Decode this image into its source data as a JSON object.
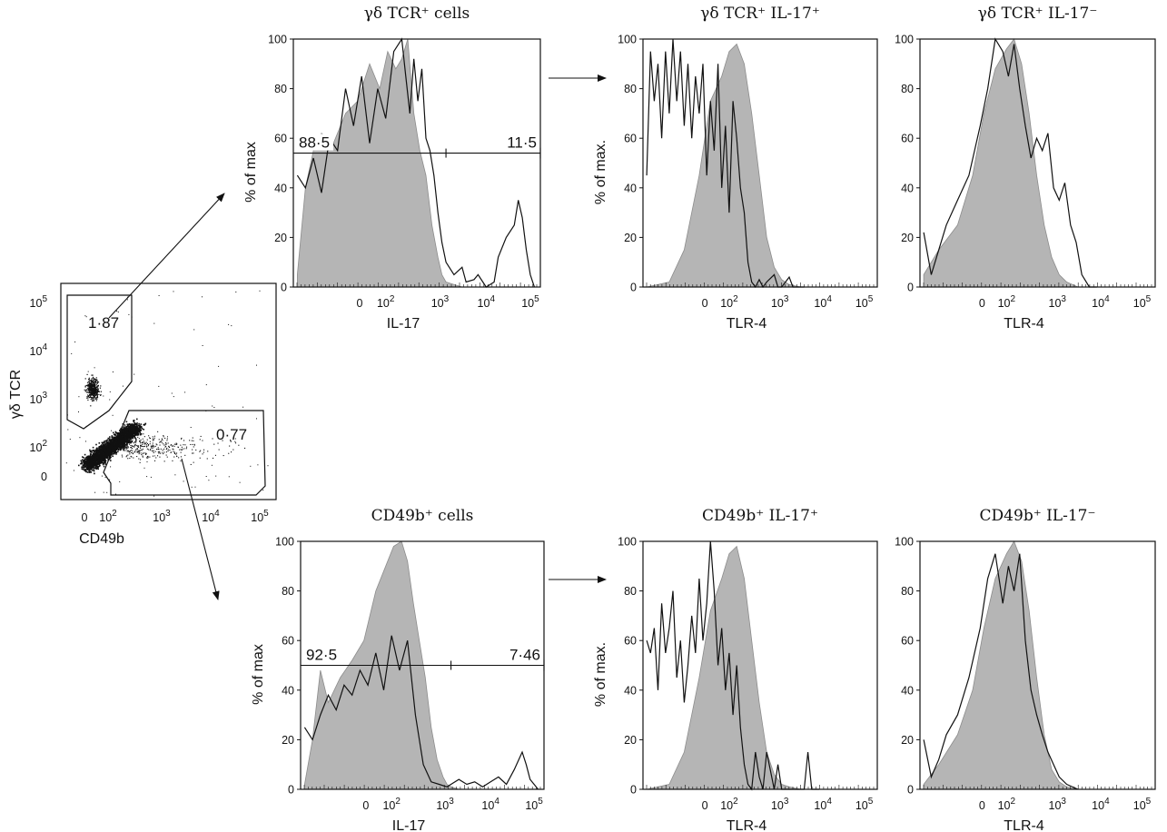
{
  "figure": {
    "arrows": 4
  },
  "chart_data": [
    {
      "id": "dotplot",
      "type": "scatter",
      "xlabel": "CD49b",
      "ylabel": "γδ TCR",
      "x_ticks": [
        "0",
        "10^2",
        "10^3",
        "10^4",
        "10^5"
      ],
      "y_ticks": [
        "0",
        "10^2",
        "10^3",
        "10^4",
        "10^5"
      ],
      "gates": [
        {
          "label": "1·87",
          "population": "γδ TCR+"
        },
        {
          "label": "0·77",
          "population": "CD49b+"
        }
      ]
    },
    {
      "id": "gd-il17",
      "type": "area",
      "title": "γδ TCR⁺ cells",
      "xlabel": "IL-17",
      "ylabel": "% of max",
      "ylim": [
        0,
        100
      ],
      "y_ticks": [
        "0",
        "20",
        "40",
        "60",
        "80",
        "100"
      ],
      "x_ticks": [
        "0",
        "10^2",
        "10^3",
        "10^4",
        "10^5"
      ],
      "gate_labels": [
        "88·5",
        "11·5"
      ],
      "gate_level": 54,
      "series": [
        {
          "style": "filled-grey",
          "x": [
            -0.6,
            -0.4,
            -0.2,
            0.0,
            0.3,
            0.6,
            0.9,
            1.2,
            1.45,
            1.65,
            1.85,
            2.0,
            2.15,
            2.3,
            2.45,
            2.6,
            2.75,
            2.9,
            3.0,
            3.1,
            3.3,
            3.5
          ],
          "y": [
            5,
            40,
            55,
            62,
            58,
            70,
            75,
            90,
            80,
            95,
            88,
            92,
            100,
            70,
            55,
            45,
            25,
            12,
            5,
            2,
            1,
            0
          ]
        },
        {
          "style": "line-black",
          "x": [
            -0.6,
            -0.4,
            -0.2,
            0.0,
            0.2,
            0.4,
            0.6,
            0.8,
            1.0,
            1.2,
            1.4,
            1.6,
            1.8,
            2.0,
            2.1,
            2.2,
            2.3,
            2.4,
            2.5,
            2.6,
            2.7,
            2.8,
            2.9,
            3.0,
            3.1,
            3.3,
            3.5,
            3.6,
            3.8,
            3.9,
            4.1,
            4.3,
            4.4,
            4.6,
            4.8,
            4.9,
            5.0,
            5.1,
            5.2,
            5.3
          ],
          "y": [
            45,
            40,
            52,
            38,
            60,
            55,
            80,
            65,
            85,
            58,
            80,
            68,
            95,
            100,
            85,
            70,
            92,
            75,
            88,
            60,
            55,
            45,
            30,
            18,
            10,
            5,
            8,
            2,
            3,
            5,
            0,
            2,
            12,
            20,
            25,
            35,
            28,
            15,
            5,
            0
          ]
        }
      ]
    },
    {
      "id": "gd-il17pos-tlr4",
      "type": "area",
      "title": "γδ TCR⁺ IL-17⁺",
      "xlabel": "TLR-4",
      "ylabel": "% of max.",
      "ylim": [
        0,
        100
      ],
      "y_ticks": [
        "0",
        "20",
        "40",
        "60",
        "80",
        "100"
      ],
      "x_ticks": [
        "0",
        "10^2",
        "10^3",
        "10^4",
        "10^5"
      ],
      "series": [
        {
          "style": "filled-grey",
          "x": [
            -0.6,
            0.0,
            0.4,
            0.8,
            1.1,
            1.4,
            1.6,
            1.8,
            2.0,
            2.2,
            2.4,
            2.6,
            2.8,
            3.0,
            3.2,
            3.5
          ],
          "y": [
            0,
            2,
            15,
            45,
            75,
            85,
            95,
            98,
            90,
            70,
            45,
            20,
            8,
            3,
            1,
            0
          ]
        },
        {
          "style": "line-black",
          "x": [
            -0.6,
            -0.5,
            -0.4,
            -0.3,
            -0.2,
            -0.1,
            0.0,
            0.1,
            0.2,
            0.3,
            0.4,
            0.5,
            0.6,
            0.7,
            0.8,
            0.9,
            1.0,
            1.1,
            1.2,
            1.3,
            1.4,
            1.5,
            1.6,
            1.7,
            1.8,
            1.9,
            2.0,
            2.1,
            2.2,
            2.3,
            2.4,
            2.5,
            2.6,
            2.8,
            2.9,
            3.0,
            3.2,
            3.3,
            3.4,
            3.6
          ],
          "y": [
            45,
            95,
            75,
            90,
            60,
            95,
            70,
            100,
            75,
            95,
            65,
            90,
            60,
            85,
            70,
            90,
            45,
            75,
            55,
            90,
            40,
            65,
            30,
            75,
            60,
            40,
            30,
            10,
            2,
            0,
            3,
            0,
            2,
            5,
            0,
            0,
            4,
            0,
            0,
            0
          ]
        }
      ]
    },
    {
      "id": "gd-il17neg-tlr4",
      "type": "area",
      "title": "γδ TCR⁺ IL-17⁻",
      "xlabel": "TLR-4",
      "ylabel": "",
      "ylim": [
        0,
        100
      ],
      "y_ticks": [
        "0",
        "20",
        "40",
        "60",
        "80",
        "100"
      ],
      "x_ticks": [
        "0",
        "10^2",
        "10^3",
        "10^4",
        "10^5"
      ],
      "series": [
        {
          "style": "filled-grey",
          "x": [
            -0.6,
            -0.2,
            0.3,
            0.7,
            1.0,
            1.3,
            1.6,
            1.8,
            2.0,
            2.2,
            2.4,
            2.6,
            2.8,
            3.0,
            3.2,
            3.5
          ],
          "y": [
            5,
            15,
            25,
            45,
            70,
            88,
            96,
            100,
            90,
            70,
            45,
            25,
            12,
            5,
            2,
            0
          ]
        },
        {
          "style": "line-black",
          "x": [
            -0.6,
            -0.4,
            -0.2,
            0.0,
            0.3,
            0.6,
            0.9,
            1.1,
            1.3,
            1.5,
            1.65,
            1.8,
            1.95,
            2.1,
            2.25,
            2.4,
            2.55,
            2.7,
            2.85,
            3.0,
            3.15,
            3.3,
            3.45,
            3.6,
            3.8,
            4.0
          ],
          "y": [
            22,
            5,
            15,
            25,
            35,
            45,
            65,
            80,
            100,
            95,
            85,
            98,
            80,
            65,
            52,
            60,
            55,
            62,
            40,
            35,
            42,
            25,
            18,
            5,
            0,
            0
          ]
        }
      ]
    },
    {
      "id": "cd49b-il17",
      "type": "area",
      "title": "CD49b⁺ cells",
      "xlabel": "IL-17",
      "ylabel": "% of max",
      "ylim": [
        0,
        100
      ],
      "y_ticks": [
        "0",
        "20",
        "40",
        "60",
        "80",
        "100"
      ],
      "x_ticks": [
        "0",
        "10^2",
        "10^3",
        "10^4",
        "10^5"
      ],
      "gate_labels": [
        "92·5",
        "7·46"
      ],
      "gate_level": 50,
      "series": [
        {
          "style": "filled-grey",
          "x": [
            -0.6,
            -0.4,
            -0.2,
            0.0,
            0.3,
            0.6,
            0.9,
            1.2,
            1.45,
            1.65,
            1.85,
            2.0,
            2.15,
            2.3,
            2.45,
            2.6,
            2.75,
            2.9,
            3.0,
            3.1,
            3.3,
            3.5
          ],
          "y": [
            2,
            20,
            48,
            35,
            45,
            52,
            60,
            80,
            90,
            98,
            100,
            92,
            75,
            60,
            45,
            25,
            12,
            5,
            2,
            1,
            0,
            0
          ]
        },
        {
          "style": "line-black",
          "x": [
            -0.6,
            -0.4,
            -0.2,
            0.0,
            0.2,
            0.4,
            0.6,
            0.8,
            1.0,
            1.2,
            1.4,
            1.6,
            1.8,
            2.0,
            2.2,
            2.4,
            2.6,
            2.8,
            3.0,
            3.1,
            3.3,
            3.5,
            3.7,
            3.9,
            4.1,
            4.3,
            4.5,
            4.7,
            4.9,
            5.0,
            5.1,
            5.2,
            5.3
          ],
          "y": [
            25,
            20,
            30,
            38,
            32,
            42,
            38,
            48,
            42,
            55,
            40,
            62,
            48,
            60,
            30,
            10,
            3,
            2,
            1,
            2,
            4,
            2,
            3,
            1,
            3,
            5,
            2,
            8,
            15,
            10,
            4,
            2,
            0
          ]
        }
      ]
    },
    {
      "id": "cd49b-il17pos-tlr4",
      "type": "area",
      "title": "CD49b⁺ IL-17⁺",
      "xlabel": "TLR-4",
      "ylabel": "% of max.",
      "ylim": [
        0,
        100
      ],
      "y_ticks": [
        "0",
        "20",
        "40",
        "60",
        "80",
        "100"
      ],
      "x_ticks": [
        "0",
        "10^2",
        "10^3",
        "10^4",
        "10^5"
      ],
      "series": [
        {
          "style": "filled-grey",
          "x": [
            -0.6,
            0.0,
            0.4,
            0.8,
            1.1,
            1.4,
            1.6,
            1.8,
            2.0,
            2.2,
            2.4,
            2.6,
            2.8,
            3.0,
            3.2,
            3.5
          ],
          "y": [
            0,
            2,
            15,
            45,
            72,
            85,
            95,
            98,
            85,
            60,
            35,
            15,
            6,
            2,
            1,
            0
          ]
        },
        {
          "style": "line-black",
          "x": [
            -0.6,
            -0.5,
            -0.4,
            -0.3,
            -0.2,
            -0.1,
            0.0,
            0.1,
            0.2,
            0.3,
            0.4,
            0.5,
            0.6,
            0.7,
            0.8,
            0.9,
            1.0,
            1.1,
            1.2,
            1.3,
            1.4,
            1.5,
            1.6,
            1.7,
            1.8,
            1.9,
            2.0,
            2.1,
            2.2,
            2.3,
            2.4,
            2.5,
            2.6,
            2.8,
            2.9,
            3.0,
            3.2,
            3.6,
            3.7,
            3.8,
            4.0
          ],
          "y": [
            60,
            55,
            65,
            40,
            75,
            55,
            65,
            80,
            45,
            60,
            35,
            50,
            70,
            55,
            85,
            60,
            75,
            100,
            80,
            50,
            65,
            40,
            55,
            30,
            50,
            25,
            10,
            2,
            0,
            15,
            5,
            0,
            15,
            0,
            10,
            0,
            0,
            0,
            15,
            0,
            0
          ]
        }
      ]
    },
    {
      "id": "cd49b-il17neg-tlr4",
      "type": "area",
      "title": "CD49b⁺ IL-17⁻",
      "xlabel": "TLR-4",
      "ylabel": "",
      "ylim": [
        0,
        100
      ],
      "y_ticks": [
        "0",
        "20",
        "40",
        "60",
        "80",
        "100"
      ],
      "x_ticks": [
        "0",
        "10^2",
        "10^3",
        "10^4",
        "10^5"
      ],
      "series": [
        {
          "style": "filled-grey",
          "x": [
            -0.6,
            -0.2,
            0.3,
            0.7,
            1.0,
            1.3,
            1.6,
            1.8,
            2.0,
            2.2,
            2.4,
            2.6,
            2.8,
            3.0,
            3.2,
            3.5
          ],
          "y": [
            2,
            10,
            22,
            40,
            65,
            85,
            95,
            100,
            92,
            72,
            45,
            22,
            8,
            3,
            1,
            0
          ]
        },
        {
          "style": "line-black",
          "x": [
            -0.6,
            -0.4,
            -0.2,
            0.0,
            0.3,
            0.6,
            0.9,
            1.1,
            1.3,
            1.5,
            1.65,
            1.8,
            1.95,
            2.1,
            2.25,
            2.4,
            2.55,
            2.7,
            2.85,
            3.0,
            3.2,
            3.5
          ],
          "y": [
            20,
            5,
            12,
            22,
            30,
            45,
            65,
            85,
            95,
            75,
            90,
            80,
            95,
            60,
            40,
            30,
            22,
            15,
            10,
            5,
            2,
            0
          ]
        }
      ]
    }
  ]
}
